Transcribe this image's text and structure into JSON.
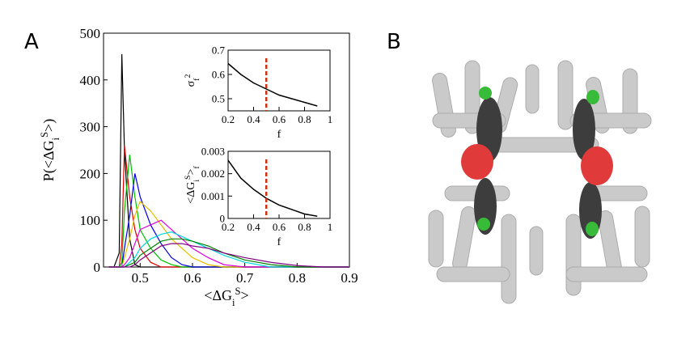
{
  "panel_labels": [
    "A",
    "B"
  ],
  "chart_data": [
    {
      "type": "line",
      "xlabel": [
        {
          "text": "<ΔG",
          "style": "normal"
        },
        {
          "text": "i",
          "style": "sub"
        },
        {
          "text": "S",
          "style": "sup"
        },
        {
          "text": ">",
          "style": "normal"
        }
      ],
      "ylabel": [
        {
          "text": "P(<ΔG",
          "style": "normal"
        },
        {
          "text": "i",
          "style": "sub"
        },
        {
          "text": "S",
          "style": "sup"
        },
        {
          "text": ">)",
          "style": "normal"
        }
      ],
      "x": [
        0.44,
        0.45,
        0.46,
        0.465,
        0.47,
        0.48,
        0.49,
        0.5,
        0.52,
        0.54,
        0.56,
        0.58,
        0.6,
        0.63,
        0.66,
        0.7,
        0.75,
        0.8,
        0.85,
        0.9
      ],
      "series": [
        {
          "color": "#000000",
          "values": [
            0,
            0,
            30,
            455,
            250,
            60,
            5,
            0,
            0,
            0,
            0,
            0,
            0,
            0,
            0,
            0,
            0,
            0,
            0,
            0
          ]
        },
        {
          "color": "#e00000",
          "values": [
            0,
            0,
            0,
            50,
            260,
            150,
            80,
            40,
            10,
            0,
            0,
            0,
            0,
            0,
            0,
            0,
            0,
            0,
            0,
            0
          ]
        },
        {
          "color": "#00c000",
          "values": [
            0,
            0,
            0,
            10,
            120,
            240,
            150,
            80,
            40,
            15,
            5,
            0,
            0,
            0,
            0,
            0,
            0,
            0,
            0,
            0
          ]
        },
        {
          "color": "#0000e0",
          "values": [
            0,
            0,
            0,
            0,
            40,
            110,
            200,
            150,
            90,
            50,
            20,
            5,
            0,
            0,
            0,
            0,
            0,
            0,
            0,
            0
          ]
        },
        {
          "color": "#e8c000",
          "values": [
            0,
            0,
            0,
            0,
            20,
            60,
            110,
            140,
            120,
            90,
            60,
            40,
            20,
            5,
            0,
            0,
            0,
            0,
            0,
            0
          ]
        },
        {
          "color": "#e000e0",
          "values": [
            0,
            0,
            0,
            0,
            5,
            20,
            50,
            80,
            90,
            100,
            80,
            60,
            40,
            20,
            5,
            0,
            0,
            0,
            0,
            0
          ]
        },
        {
          "color": "#00d8e0",
          "values": [
            0,
            0,
            0,
            0,
            0,
            10,
            20,
            40,
            60,
            70,
            75,
            65,
            55,
            40,
            25,
            10,
            0,
            0,
            0,
            0
          ]
        },
        {
          "color": "#008000",
          "values": [
            0,
            0,
            0,
            0,
            0,
            5,
            10,
            25,
            40,
            55,
            60,
            60,
            55,
            45,
            30,
            15,
            5,
            0,
            0,
            0
          ]
        },
        {
          "color": "#800080",
          "values": [
            0,
            0,
            0,
            0,
            0,
            0,
            5,
            15,
            30,
            45,
            50,
            50,
            45,
            40,
            30,
            20,
            10,
            3,
            0,
            0
          ]
        }
      ],
      "xlim": [
        0.43,
        0.9
      ],
      "xticks": [
        0.5,
        0.6,
        0.7,
        0.8,
        0.9
      ],
      "ylim": [
        0,
        500
      ],
      "yticks": [
        0,
        100,
        200,
        300,
        400,
        500
      ]
    },
    {
      "type": "line",
      "xlabel": [
        {
          "text": "f",
          "style": "normal"
        }
      ],
      "ylabel": [
        {
          "text": "σ",
          "style": "normal"
        },
        {
          "text": "f",
          "style": "sub"
        },
        {
          "text": "2",
          "style": "sup"
        }
      ],
      "x": [
        0.2,
        0.3,
        0.4,
        0.5,
        0.6,
        0.7,
        0.8,
        0.9
      ],
      "series": [
        {
          "color": "#000000",
          "values": [
            0.645,
            0.6,
            0.565,
            0.54,
            0.515,
            0.5,
            0.485,
            0.47
          ]
        }
      ],
      "marker_x": 0.5,
      "marker_color": "#d03010",
      "xlim": [
        0.2,
        1
      ],
      "xticks": [
        0.2,
        0.4,
        0.6,
        0.8,
        1
      ],
      "ylim": [
        0.45,
        0.7
      ],
      "yticks": [
        0.5,
        0.6,
        0.7
      ]
    },
    {
      "type": "line",
      "xlabel": [
        {
          "text": "f",
          "style": "normal"
        }
      ],
      "ylabel": [
        {
          "text": "<ΔG",
          "style": "normal"
        },
        {
          "text": "i",
          "style": "sub"
        },
        {
          "text": "S",
          "style": "sup"
        },
        {
          "text": ">",
          "style": "normal"
        },
        {
          "text": "f",
          "style": "sub"
        }
      ],
      "x": [
        0.2,
        0.3,
        0.4,
        0.5,
        0.6,
        0.7,
        0.8,
        0.9
      ],
      "series": [
        {
          "color": "#000000",
          "values": [
            0.0026,
            0.0018,
            0.0013,
            0.0009,
            0.0006,
            0.0004,
            0.0002,
            0.0001
          ]
        }
      ],
      "marker_x": 0.5,
      "marker_color": "#d03010",
      "xlim": [
        0.2,
        1
      ],
      "xticks": [
        0.2,
        0.4,
        0.6,
        0.8,
        1
      ],
      "ylim": [
        0,
        0.003
      ],
      "yticks": [
        0,
        0.001,
        0.002,
        0.003
      ]
    }
  ]
}
